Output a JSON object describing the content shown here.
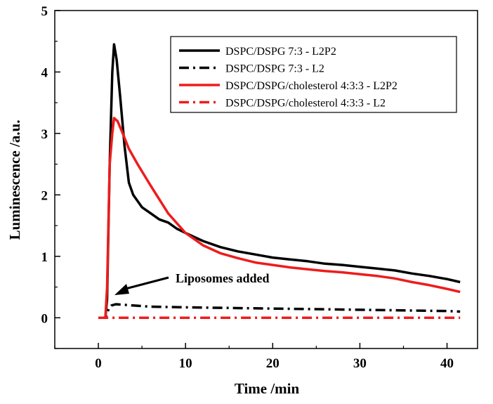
{
  "chart_data": {
    "type": "line",
    "xlabel": "Time /min",
    "ylabel": "Luminescence /a.u.",
    "xlim": [
      -5,
      43.5
    ],
    "ylim": [
      -0.5,
      5
    ],
    "xticks": [
      0,
      10,
      20,
      30,
      40
    ],
    "yticks": [
      0,
      1,
      2,
      3,
      4,
      5
    ],
    "grid": false,
    "legend_position": "top-right",
    "annotation": {
      "text": "Liposomes added",
      "x": 1,
      "y": 0.3
    },
    "series": [
      {
        "name": "DSPC/DSPG 7:3 - L2P2",
        "color": "#000000",
        "style": "solid",
        "x": [
          0,
          0.8,
          1.0,
          1.3,
          1.6,
          1.8,
          2.1,
          2.5,
          3.0,
          3.5,
          4.0,
          5,
          6,
          7,
          8,
          9,
          10,
          12,
          14,
          16,
          18,
          20,
          22,
          24,
          26,
          28,
          30,
          32,
          34,
          36,
          38,
          40,
          41.5
        ],
        "y": [
          0,
          0,
          0.3,
          2.5,
          4.0,
          4.45,
          4.2,
          3.6,
          2.8,
          2.2,
          2.0,
          1.8,
          1.7,
          1.6,
          1.55,
          1.45,
          1.38,
          1.25,
          1.15,
          1.08,
          1.03,
          0.98,
          0.95,
          0.92,
          0.88,
          0.86,
          0.83,
          0.8,
          0.77,
          0.72,
          0.68,
          0.63,
          0.58
        ]
      },
      {
        "name": "DSPC/DSPG 7:3 - L2",
        "color": "#000000",
        "style": "dashdot",
        "x": [
          0,
          0.8,
          1.2,
          1.5,
          2,
          4,
          6,
          10,
          15,
          20,
          25,
          30,
          35,
          40,
          41.5
        ],
        "y": [
          0,
          0,
          0.15,
          0.2,
          0.22,
          0.2,
          0.18,
          0.17,
          0.16,
          0.15,
          0.14,
          0.13,
          0.12,
          0.11,
          0.1
        ]
      },
      {
        "name": "DSPC/DSPG/cholesterol 4:3:3 - L2P2",
        "color": "#ee1c1c",
        "style": "solid",
        "x": [
          0,
          0.8,
          1.0,
          1.3,
          1.6,
          1.8,
          2.2,
          2.8,
          3.5,
          4.5,
          6,
          8,
          10,
          12,
          14,
          16,
          18,
          20,
          22,
          24,
          26,
          28,
          30,
          32,
          34,
          36,
          38,
          40,
          41.5
        ],
        "y": [
          0,
          0,
          0.5,
          2.5,
          3.0,
          3.25,
          3.2,
          3.0,
          2.75,
          2.5,
          2.15,
          1.7,
          1.38,
          1.18,
          1.05,
          0.97,
          0.9,
          0.86,
          0.82,
          0.79,
          0.76,
          0.74,
          0.71,
          0.68,
          0.64,
          0.58,
          0.53,
          0.47,
          0.42
        ]
      },
      {
        "name": "DSPC/DSPG/cholesterol 4:3:3 - L2",
        "color": "#ee1c1c",
        "style": "dashdot",
        "x": [
          0,
          10,
          20,
          30,
          41.5
        ],
        "y": [
          0,
          0,
          0,
          0,
          0
        ]
      }
    ]
  }
}
